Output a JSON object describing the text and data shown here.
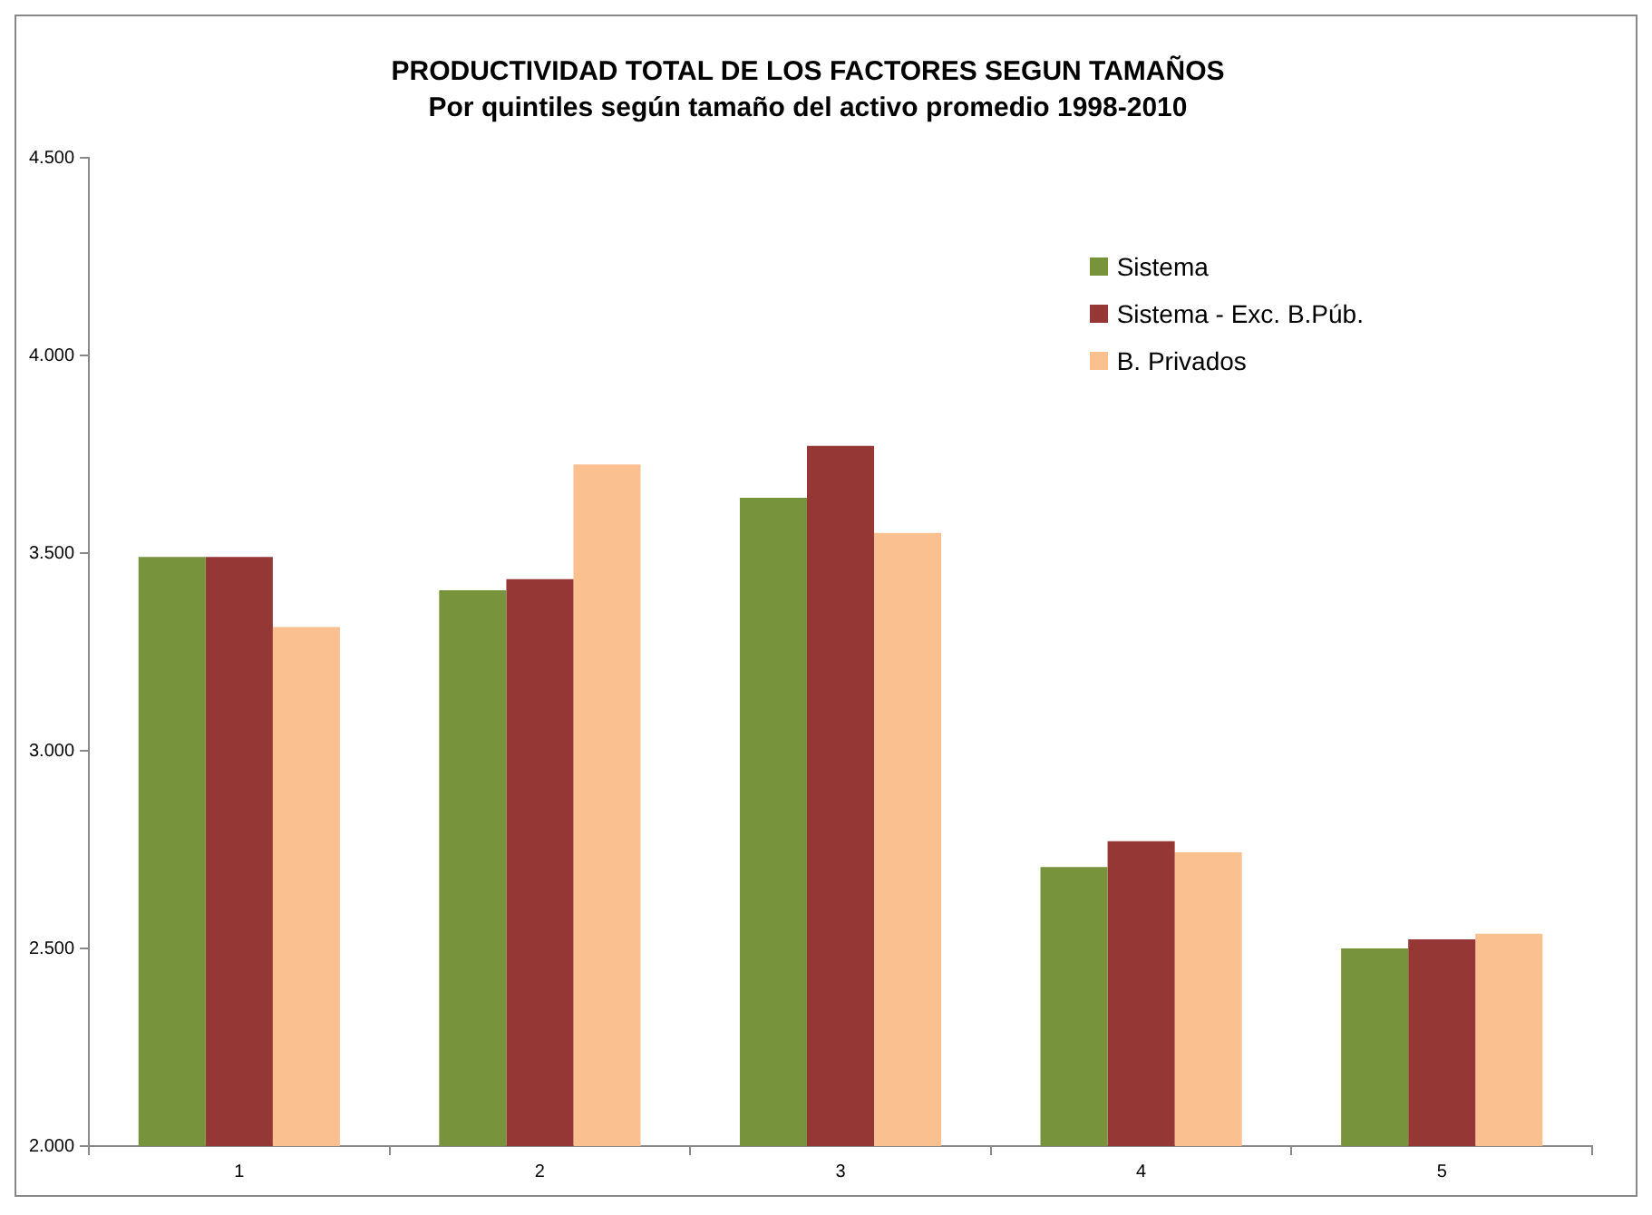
{
  "chart_data": {
    "type": "bar",
    "title": "PRODUCTIVIDAD TOTAL DE LOS FACTORES SEGUN TAMAÑOS",
    "subtitle": "Por quintiles según tamaño del activo promedio 1998-2010",
    "categories": [
      "1",
      "2",
      "3",
      "4",
      "5"
    ],
    "series": [
      {
        "name": "Sistema",
        "color": "#77933c",
        "values": [
          3490,
          3406,
          3640,
          2706,
          2500
        ]
      },
      {
        "name": "Sistema - Exc. B.Púb.",
        "color": "#953735",
        "values": [
          3490,
          3434,
          3771,
          2771,
          2523
        ]
      },
      {
        "name": "B. Privados",
        "color": "#fac090",
        "values": [
          3313,
          3724,
          3551,
          2743,
          2537
        ]
      }
    ],
    "ylim": [
      2000,
      4500
    ],
    "yticks": [
      {
        "value": 2000,
        "label": "2.000"
      },
      {
        "value": 2500,
        "label": "2.500"
      },
      {
        "value": 3000,
        "label": "3.000"
      },
      {
        "value": 3500,
        "label": "3.500"
      },
      {
        "value": 4000,
        "label": "4.000"
      },
      {
        "value": 4500,
        "label": "4.500"
      }
    ],
    "grid": false,
    "legend": "top right"
  }
}
